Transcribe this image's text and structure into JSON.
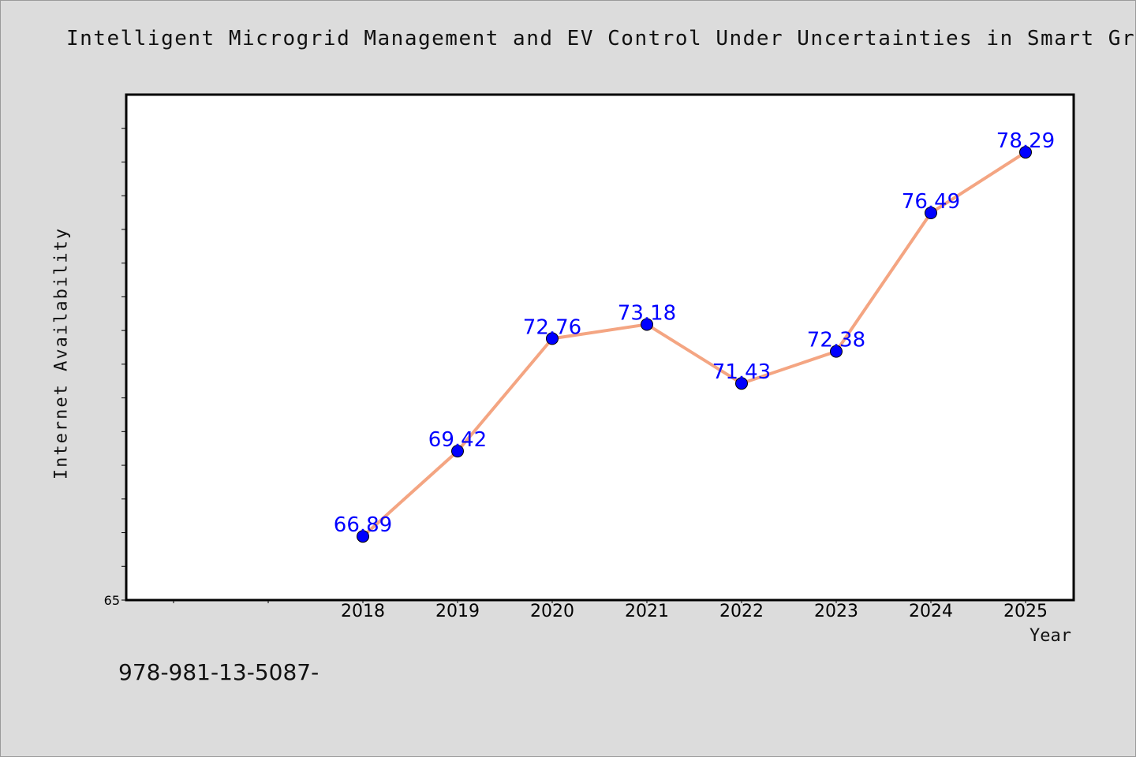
{
  "chart_data": {
    "type": "line",
    "title": "Intelligent Microgrid Management and EV Control Under Uncertainties in Smart Gri",
    "xlabel": "Year",
    "ylabel": "Internet Availability",
    "categories": [
      "2018",
      "2019",
      "2020",
      "2021",
      "2022",
      "2023",
      "2024",
      "2025"
    ],
    "values": [
      66.89,
      69.42,
      72.76,
      73.18,
      71.43,
      72.38,
      76.49,
      78.29
    ],
    "data_labels": [
      "66.89",
      "69.42",
      "72.76",
      "73.18",
      "71.43",
      "72.38",
      "76.49",
      "78.29"
    ],
    "y_tick_label": "65",
    "ylim": [
      65,
      80
    ],
    "grid": false,
    "colors": {
      "line": "#f4a582",
      "marker": "#0000ff",
      "label": "#0000ff"
    }
  },
  "footer_note": "978-981-13-5087-"
}
